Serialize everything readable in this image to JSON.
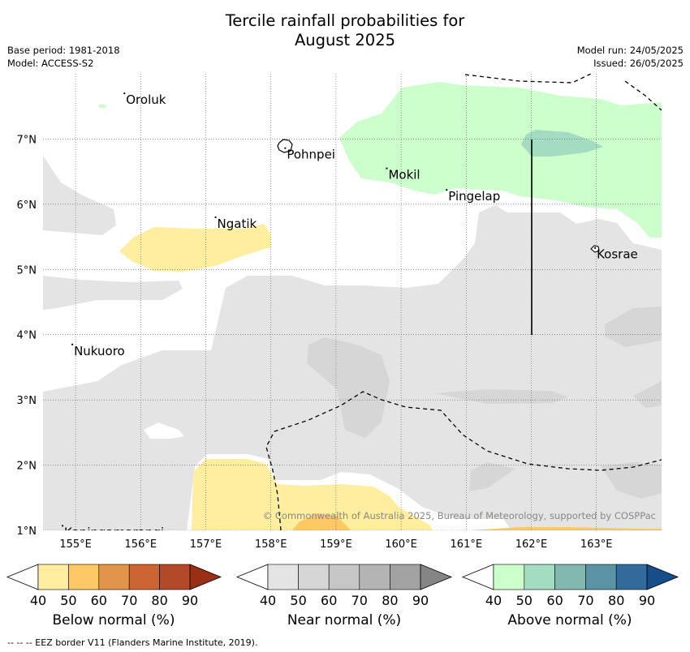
{
  "header": {
    "title_line1": "Tercile rainfall probabilities for",
    "title_line2": "August 2025",
    "base_period": "Base period: 1981-2018",
    "model": "Model: ACCESS-S2",
    "model_run": "Model run: 24/05/2025",
    "issued": "Issued: 26/05/2025"
  },
  "map": {
    "x_ticks": [
      "155°E",
      "156°E",
      "157°E",
      "158°E",
      "159°E",
      "160°E",
      "161°E",
      "162°E",
      "163°E"
    ],
    "y_ticks": [
      "7°N",
      "6°N",
      "5°N",
      "4°N",
      "3°N",
      "2°N",
      "1°N"
    ],
    "places": [
      {
        "name": "Oroluk",
        "lon": 155.75,
        "lat": 7.7
      },
      {
        "name": "Pohnpei",
        "lon": 158.22,
        "lat": 6.86
      },
      {
        "name": "Mokil",
        "lon": 159.78,
        "lat": 6.55
      },
      {
        "name": "Pingelap",
        "lon": 160.7,
        "lat": 6.22
      },
      {
        "name": "Ngatik",
        "lon": 157.15,
        "lat": 5.8
      },
      {
        "name": "Kosrae",
        "lon": 162.98,
        "lat": 5.33
      },
      {
        "name": "Nukuoro",
        "lon": 154.95,
        "lat": 3.85
      },
      {
        "name": "Kapingamarangi",
        "lon": 154.8,
        "lat": 1.07
      }
    ],
    "copyright": "© Commonwealth of Australia 2025, Bureau of Meteorology, supported by COSPPac"
  },
  "colorbars": [
    {
      "label": "Below normal (%)",
      "ticks": [
        "40",
        "50",
        "60",
        "70",
        "80",
        "90"
      ],
      "colors": [
        "#ffffff",
        "#ffeda0",
        "#fec965",
        "#e1944a",
        "#cd6434",
        "#b24a2a",
        "#993015"
      ]
    },
    {
      "label": "Near normal (%)",
      "ticks": [
        "40",
        "50",
        "60",
        "70",
        "80",
        "90"
      ],
      "colors": [
        "#ffffff",
        "#e4e4e4",
        "#d6d6d6",
        "#c6c6c6",
        "#b4b4b4",
        "#a2a2a2",
        "#858585"
      ]
    },
    {
      "label": "Above normal (%)",
      "ticks": [
        "40",
        "50",
        "60",
        "70",
        "80",
        "90"
      ],
      "colors": [
        "#ffffff",
        "#ccffcc",
        "#a4dcc2",
        "#82b8b0",
        "#5b93a4",
        "#336a9c",
        "#164e8a"
      ]
    }
  ],
  "footnote": "--  --  -- EEZ border V11 (Flanders Marine Institute, 2019)."
}
